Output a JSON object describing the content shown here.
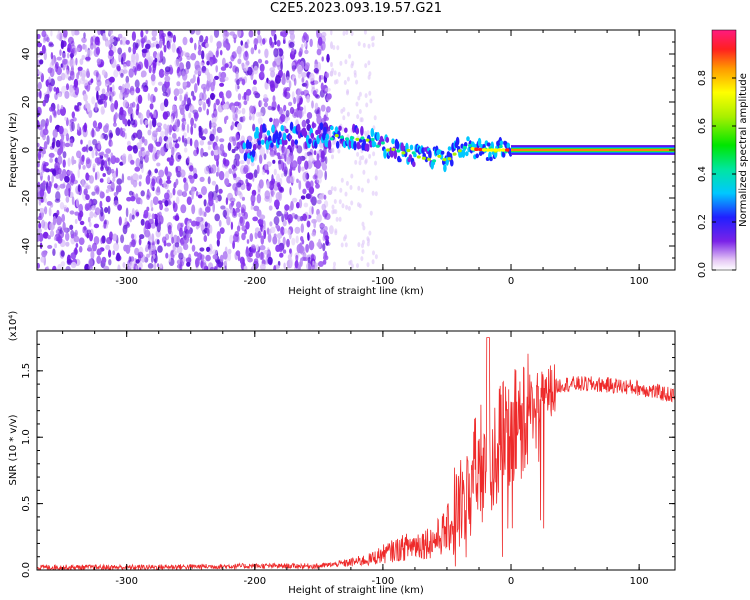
{
  "title": "C2E5.2023.093.19.57.G21",
  "chart_data": [
    {
      "type": "heatmap",
      "title": "C2E5.2023.093.19.57.G21",
      "xlabel": "Height of straight line (km)",
      "ylabel": "Frequency (Hz)",
      "xlim": [
        -370,
        128
      ],
      "ylim": [
        -50,
        50
      ],
      "xticks": [
        "-300",
        "-200",
        "-100",
        "0",
        "100"
      ],
      "yticks": [
        "-40",
        "-20",
        "0",
        "20",
        "40"
      ],
      "colorbar": {
        "label": "Normalized spectral amplitude",
        "range": [
          0,
          1
        ],
        "ticks": [
          "0.0",
          "0.2",
          "0.4",
          "0.6",
          "0.8"
        ],
        "colormap": "rainbow"
      },
      "ridge": [
        {
          "x": -200,
          "y": 6
        },
        {
          "x": -160,
          "y": 6
        },
        {
          "x": -130,
          "y": 6
        },
        {
          "x": -110,
          "y": 4
        },
        {
          "x": -90,
          "y": 0
        },
        {
          "x": -70,
          "y": -3
        },
        {
          "x": -50,
          "y": -4
        },
        {
          "x": -40,
          "y": 1
        },
        {
          "x": -20,
          "y": 0
        },
        {
          "x": 0,
          "y": 0
        },
        {
          "x": 50,
          "y": 0
        },
        {
          "x": 128,
          "y": 0
        }
      ],
      "colors": {
        "noise": "#7a22e8",
        "ridge": "#ff1a1a"
      }
    },
    {
      "type": "line",
      "xlabel": "Height of straight line (km)",
      "ylabel": "SNR (10 * v/v)",
      "scale_label": "(x10⁴)",
      "xlim": [
        -370,
        128
      ],
      "ylim": [
        0,
        1.8
      ],
      "xticks": [
        "-300",
        "-200",
        "-100",
        "0",
        "100"
      ],
      "yticks": [
        "0.0",
        "0.5",
        "1.0",
        "1.5"
      ],
      "x": [
        -370,
        -300,
        -200,
        -150,
        -130,
        -110,
        -100,
        -90,
        -80,
        -70,
        -60,
        -50,
        -40,
        -30,
        -25,
        -20,
        -15,
        -10,
        -5,
        0,
        5,
        10,
        20,
        30,
        40,
        60,
        80,
        100,
        128
      ],
      "y": [
        0.02,
        0.02,
        0.03,
        0.03,
        0.05,
        0.08,
        0.12,
        0.15,
        0.18,
        0.2,
        0.22,
        0.3,
        0.45,
        0.7,
        0.75,
        0.9,
        0.8,
        0.95,
        1.0,
        1.05,
        1.1,
        1.2,
        1.28,
        1.35,
        1.4,
        1.4,
        1.39,
        1.37,
        1.31
      ],
      "colors": {
        "line": "#ee2a2a"
      }
    }
  ]
}
